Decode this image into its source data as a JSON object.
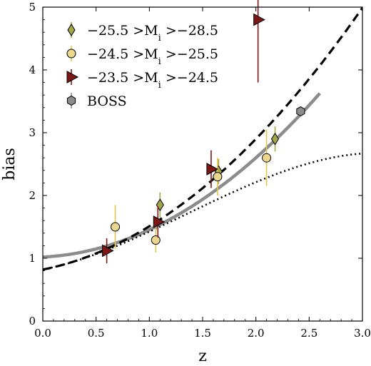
{
  "chart_data": {
    "type": "scatter",
    "xlabel": "z",
    "ylabel": "bias",
    "xlim": [
      0.0,
      3.0
    ],
    "ylim": [
      0,
      5
    ],
    "x_ticks": [
      0.0,
      0.5,
      1.0,
      1.5,
      2.0,
      2.5,
      3.0
    ],
    "x_tick_labels": [
      "0.0",
      "0.5",
      "1.0",
      "1.5",
      "2.0",
      "2.5",
      "3.0"
    ],
    "y_ticks": [
      0,
      1,
      2,
      3,
      4,
      5
    ],
    "y_tick_labels": [
      "0",
      "1",
      "2",
      "3",
      "4",
      "5"
    ],
    "grid": false,
    "legend_position": "top-left",
    "series": [
      {
        "name": "−25.5 >M",
        "name_sub": "i",
        "name_tail": " >−28.5",
        "marker": "diamond",
        "color": "#a4a64a",
        "errcolor": "#a4a64a",
        "points": [
          {
            "x": 1.1,
            "y": 1.85,
            "err": 0.2
          },
          {
            "x": 1.65,
            "y": 2.38,
            "err": 0.2
          },
          {
            "x": 2.18,
            "y": 2.9,
            "err": 0.2
          }
        ]
      },
      {
        "name": "−24.5 >M",
        "name_sub": "i",
        "name_tail": " >−25.5",
        "marker": "circle",
        "color": "#ecd790",
        "errcolor": "#e3c64e",
        "points": [
          {
            "x": 0.68,
            "y": 1.5,
            "err": 0.35
          },
          {
            "x": 1.06,
            "y": 1.29,
            "err": 0.2
          },
          {
            "x": 1.64,
            "y": 2.3,
            "err": 0.3
          },
          {
            "x": 2.1,
            "y": 2.6,
            "err": 0.45
          }
        ]
      },
      {
        "name": "−23.5 >M",
        "name_sub": "i",
        "name_tail": " >−24.5",
        "marker": "triangle-right",
        "color": "#7a1717",
        "errcolor": "#7a1717",
        "points": [
          {
            "x": 0.6,
            "y": 1.12,
            "err": 0.2
          },
          {
            "x": 1.08,
            "y": 1.58,
            "err": 0.25
          },
          {
            "x": 1.58,
            "y": 2.42,
            "err": 0.3
          },
          {
            "x": 2.02,
            "y": 4.8,
            "err": 1.0
          }
        ]
      },
      {
        "name": "BOSS",
        "marker": "hexagon",
        "color": "#8c8c8c",
        "errcolor": "#8c8c8c",
        "points": [
          {
            "x": 2.42,
            "y": 3.34,
            "err": 0.05
          }
        ]
      }
    ],
    "curves": [
      {
        "style": "solid",
        "color": "#8c8c8c",
        "x_range": [
          0.0,
          2.6
        ],
        "poly": [
          1.02,
          0.08,
          0.355
        ]
      },
      {
        "style": "dashed",
        "color": "#000000",
        "x_range": [
          0.0,
          3.0
        ],
        "poly": [
          0.82,
          0.34,
          0.35
        ]
      },
      {
        "style": "dotted",
        "color": "#000000",
        "x_range": [
          0.0,
          3.0
        ],
        "poly": [
          0.82,
          0.34,
          0.35,
          -0.086
        ]
      }
    ]
  }
}
